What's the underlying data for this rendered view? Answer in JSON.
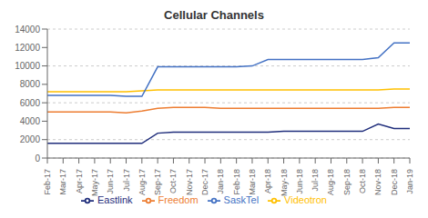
{
  "chart_data": {
    "type": "line",
    "title": "Cellular Channels",
    "categories": [
      "Feb-17",
      "Mar-17",
      "Apr-17",
      "May-17",
      "Jun-17",
      "Jul-17",
      "Aug-17",
      "Sep-17",
      "Oct-17",
      "Nov-17",
      "Dec-17",
      "Jan-18",
      "Feb-18",
      "Mar-18",
      "Apr-18",
      "May-18",
      "Jun-18",
      "Jul-18",
      "Aug-18",
      "Sep-18",
      "Oct-18",
      "Nov-18",
      "Dec-18",
      "Jan-19"
    ],
    "series": [
      {
        "name": "Freedom",
        "color": "#ED7D31",
        "values": [
          5000,
          5000,
          5000,
          5000,
          5000,
          4900,
          5100,
          5400,
          5500,
          5500,
          5500,
          5400,
          5400,
          5400,
          5400,
          5400,
          5400,
          5400,
          5400,
          5400,
          5400,
          5400,
          5500,
          5500
        ]
      },
      {
        "name": "Videotron",
        "color": "#FFC000",
        "values": [
          7200,
          7200,
          7200,
          7200,
          7200,
          7200,
          7300,
          7400,
          7400,
          7400,
          7400,
          7400,
          7400,
          7400,
          7400,
          7400,
          7400,
          7400,
          7400,
          7400,
          7400,
          7400,
          7500,
          7500
        ]
      },
      {
        "name": "SaskTel",
        "color": "#4472C4",
        "values": [
          6800,
          6800,
          6800,
          6800,
          6800,
          6700,
          6700,
          9900,
          9900,
          9900,
          9900,
          9900,
          9900,
          10000,
          10700,
          10700,
          10700,
          10700,
          10700,
          10700,
          10700,
          10900,
          12500,
          12500
        ]
      },
      {
        "name": "Eastlink",
        "color": "#1F2D7B",
        "values": [
          1600,
          1600,
          1600,
          1600,
          1600,
          1600,
          1600,
          2700,
          2800,
          2800,
          2800,
          2800,
          2800,
          2800,
          2800,
          2900,
          2900,
          2900,
          2900,
          2900,
          2900,
          3700,
          3200,
          3200
        ]
      }
    ],
    "ylim": [
      0,
      14000
    ],
    "yticks": [
      0,
      2000,
      4000,
      6000,
      8000,
      10000,
      12000,
      14000
    ],
    "grid": true,
    "legend": "bottom"
  }
}
